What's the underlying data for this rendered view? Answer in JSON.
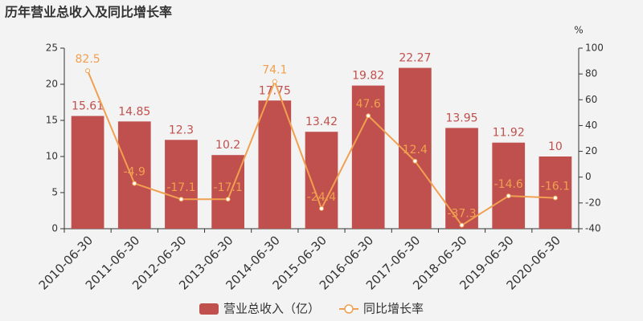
{
  "chart_data": {
    "type": "bar",
    "title": "历年营业总收入及同比增长率",
    "categories": [
      "2010-06-30",
      "2011-06-30",
      "2012-06-30",
      "2013-06-30",
      "2014-06-30",
      "2015-06-30",
      "2016-06-30",
      "2017-06-30",
      "2018-06-30",
      "2019-06-30",
      "2020-06-30"
    ],
    "series": [
      {
        "name": "营业总收入（亿）",
        "type": "bar",
        "color": "#c0504d",
        "values": [
          15.61,
          14.85,
          12.3,
          10.2,
          17.75,
          13.42,
          19.82,
          22.27,
          13.95,
          11.92,
          10
        ]
      },
      {
        "name": "同比增长率",
        "type": "line",
        "axis": "y2",
        "color": "#f0a050",
        "values": [
          82.5,
          -4.9,
          -17.1,
          -17.1,
          74.1,
          -24.4,
          47.6,
          12.4,
          -37.3,
          -14.6,
          -16.1
        ]
      }
    ],
    "ylim": [
      0,
      25
    ],
    "yticks": [
      0,
      5,
      10,
      15,
      20,
      25
    ],
    "y2lim": [
      -40,
      100
    ],
    "y2ticks": [
      -40,
      -20,
      0,
      20,
      40,
      60,
      80,
      100
    ],
    "y2label": "%"
  }
}
